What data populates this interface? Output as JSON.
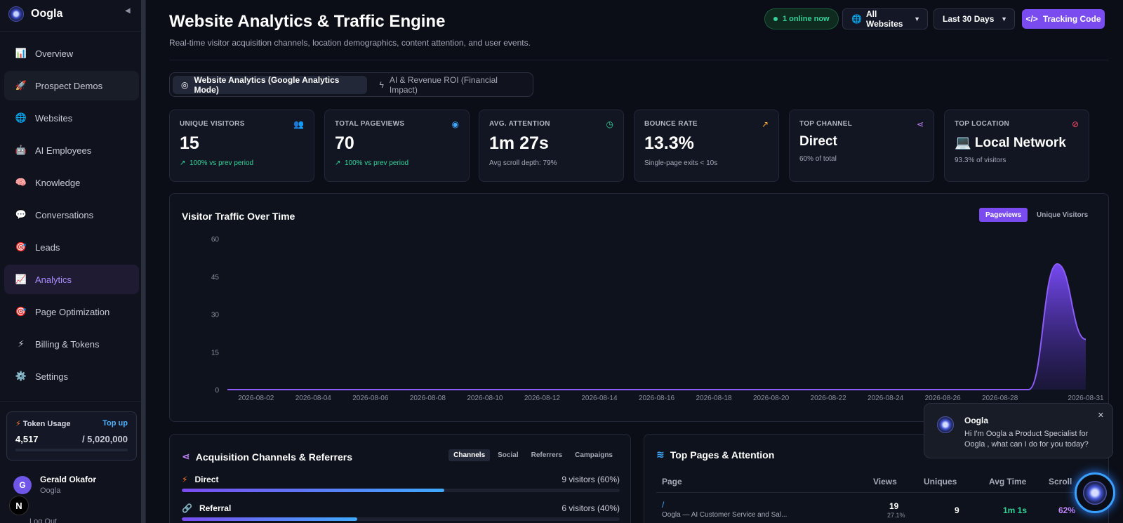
{
  "app": {
    "name": "Oogla"
  },
  "sidebar": {
    "items": [
      {
        "label": "Overview",
        "icon": "📊"
      },
      {
        "label": "Prospect Demos",
        "icon": "🚀"
      },
      {
        "label": "Websites",
        "icon": "🌐"
      },
      {
        "label": "AI Employees",
        "icon": "🤖"
      },
      {
        "label": "Knowledge",
        "icon": "🧠"
      },
      {
        "label": "Conversations",
        "icon": "💬"
      },
      {
        "label": "Leads",
        "icon": "🎯"
      },
      {
        "label": "Analytics",
        "icon": "📈"
      },
      {
        "label": "Page Optimization",
        "icon": "🎯"
      },
      {
        "label": "Billing & Tokens",
        "icon": "⚡"
      },
      {
        "label": "Settings",
        "icon": "⚙️"
      }
    ],
    "active": "Analytics",
    "token": {
      "title": "Token Usage",
      "topup": "Top up",
      "used": "4,517",
      "max": "/ 5,020,000"
    },
    "user": {
      "initial": "G",
      "name": "Gerald Okafor",
      "org": "Oogla"
    },
    "logout": "Log Out",
    "badge": "N"
  },
  "header": {
    "title": "Website Analytics & Traffic Engine",
    "subtitle": "Real-time visitor acquisition channels, location demographics, content attention, and user events.",
    "online": "1 online now",
    "site_select": "All Websites",
    "range_select": "Last 30 Days",
    "tracking": "Tracking Code"
  },
  "tabs": [
    {
      "label": "Website Analytics (Google Analytics Mode)",
      "active": true
    },
    {
      "label": "AI & Revenue ROI (Financial Impact)",
      "active": false
    }
  ],
  "kpis": [
    {
      "label": "UNIQUE VISITORS",
      "value": "15",
      "sub": "100% vs prev period",
      "trend": "↗",
      "icon": "users-icon",
      "icon_color": "#a98bff"
    },
    {
      "label": "TOTAL PAGEVIEWS",
      "value": "70",
      "sub": "100% vs prev period",
      "trend": "↗",
      "icon": "eye-icon",
      "icon_color": "#3fa9ff"
    },
    {
      "label": "AVG. ATTENTION",
      "value": "1m 27s",
      "sub": "Avg scroll depth: 79%",
      "icon": "clock-icon",
      "icon_color": "#34d399"
    },
    {
      "label": "BOUNCE RATE",
      "value": "13.3%",
      "sub": "Single-page exits < 10s",
      "icon": "trending-up-icon",
      "icon_color": "#ffa726"
    },
    {
      "label": "TOP CHANNEL",
      "value": "Direct",
      "sub": "60% of total",
      "icon": "share-icon",
      "icon_color": "#c084fc"
    },
    {
      "label": "TOP LOCATION",
      "value": "💻 Local Network",
      "sub": "93.3% of visitors",
      "icon": "compass-icon",
      "icon_color": "#ff4d6d"
    }
  ],
  "chart": {
    "title": "Visitor Traffic Over Time",
    "toggle_active": "Pageviews",
    "toggle_other": "Unique Visitors",
    "colors": {
      "line": "#8b5cf6",
      "fill": "#6d3fe0"
    }
  },
  "chart_data": {
    "type": "area",
    "title": "Visitor Traffic Over Time",
    "xlabel": "",
    "ylabel": "",
    "ylim": [
      0,
      60
    ],
    "yticks": [
      0,
      15,
      30,
      45,
      60
    ],
    "xticks": [
      "2026-08-02",
      "2026-08-04",
      "2026-08-06",
      "2026-08-08",
      "2026-08-10",
      "2026-08-12",
      "2026-08-14",
      "2026-08-16",
      "2026-08-18",
      "2026-08-20",
      "2026-08-22",
      "2026-08-24",
      "2026-08-26",
      "2026-08-28",
      "2026-08-31"
    ],
    "x": [
      "2026-08-01",
      "2026-08-02",
      "2026-08-03",
      "2026-08-04",
      "2026-08-05",
      "2026-08-06",
      "2026-08-07",
      "2026-08-08",
      "2026-08-09",
      "2026-08-10",
      "2026-08-11",
      "2026-08-12",
      "2026-08-13",
      "2026-08-14",
      "2026-08-15",
      "2026-08-16",
      "2026-08-17",
      "2026-08-18",
      "2026-08-19",
      "2026-08-20",
      "2026-08-21",
      "2026-08-22",
      "2026-08-23",
      "2026-08-24",
      "2026-08-25",
      "2026-08-26",
      "2026-08-27",
      "2026-08-28",
      "2026-08-29",
      "2026-08-30",
      "2026-08-31"
    ],
    "series": [
      {
        "name": "Pageviews",
        "values": [
          0,
          0,
          0,
          0,
          0,
          0,
          0,
          0,
          0,
          0,
          0,
          0,
          0,
          0,
          0,
          0,
          0,
          0,
          0,
          0,
          0,
          0,
          0,
          0,
          0,
          0,
          0,
          0,
          0,
          50,
          20
        ]
      }
    ],
    "grid": false
  },
  "channels": {
    "title": "Acquisition Channels & Referrers",
    "tabs": [
      "Channels",
      "Social",
      "Referrers",
      "Campaigns"
    ],
    "rows": [
      {
        "name": "Direct",
        "icon": "⚡",
        "value": "9 visitors (60%)",
        "pct": 0.6
      },
      {
        "name": "Referral",
        "icon": "🔗",
        "value": "6 visitors (40%)",
        "pct": 0.4
      }
    ]
  },
  "pages": {
    "title": "Top Pages & Attention",
    "headers": [
      "Page",
      "Views",
      "Uniques",
      "Avg Time",
      "Scroll"
    ],
    "rows": [
      {
        "path": "/",
        "title": "Oogla — AI Customer Service and Sal...",
        "views": "19",
        "views_pct": "27.1%",
        "uniques": "9",
        "avg_time": "1m 1s",
        "scroll": "62%"
      }
    ]
  },
  "chat": {
    "name": "Oogla",
    "message": "Hi I'm Oogla a Product Specialist for Oogla , what can I do for you today?",
    "close": "✕"
  }
}
